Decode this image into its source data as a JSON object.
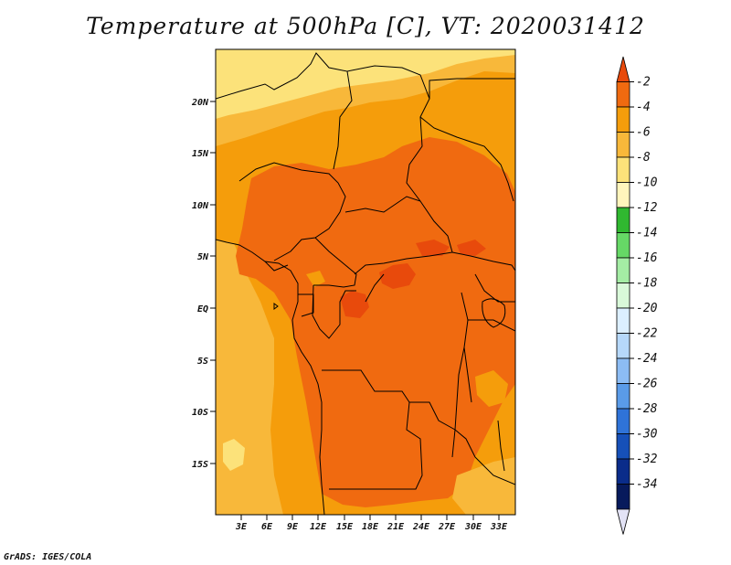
{
  "title": "Temperature at 500hPa [C], VT: 2020031412",
  "footer": "GrADS: IGES/COLA",
  "map": {
    "lat_labels": [
      "20N",
      "15N",
      "10N",
      "5N",
      "EQ",
      "5S",
      "10S",
      "15S"
    ],
    "lon_labels": [
      "3E",
      "6E",
      "9E",
      "12E",
      "15E",
      "18E",
      "21E",
      "24E",
      "27E",
      "30E",
      "33E"
    ]
  },
  "colorbar": {
    "labels": [
      "-2",
      "-4",
      "-6",
      "-8",
      "-10",
      "-12",
      "-14",
      "-16",
      "-18",
      "-20",
      "-22",
      "-24",
      "-26",
      "-28",
      "-30",
      "-32",
      "-34"
    ],
    "colors": [
      "#e84a0c",
      "#f06a10",
      "#f59d0b",
      "#f8b83a",
      "#fce27a",
      "#fff5bc",
      "#30b830",
      "#66d866",
      "#a4eca4",
      "#d9f9d9",
      "#dcefff",
      "#b6d8fa",
      "#8cbcf4",
      "#5a9be8",
      "#2f73d8",
      "#1650b8",
      "#0a2c8a",
      "#071a5c"
    ],
    "tip_low_color": "#e3e3f6"
  }
}
